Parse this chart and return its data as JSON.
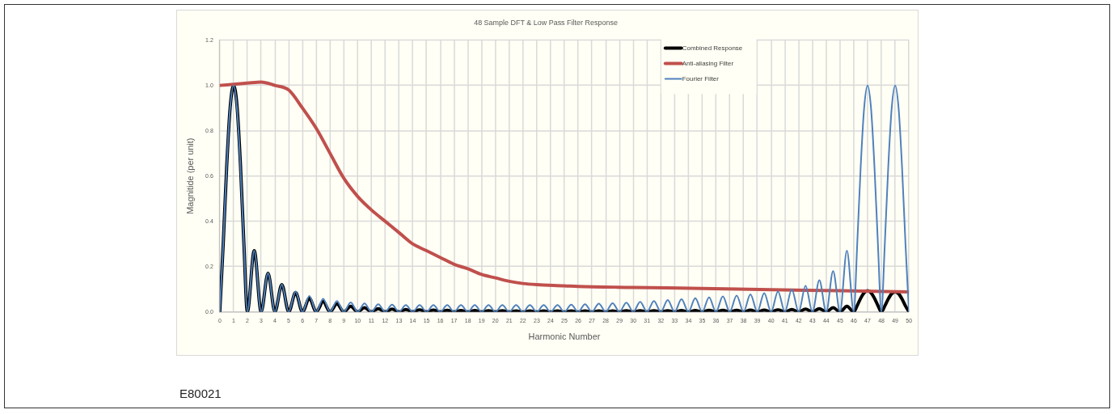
{
  "chart_data": {
    "type": "line",
    "title": "48 Sample DFT & Low Pass Filter Response",
    "xlabel": "Harmonic Number",
    "ylabel": "Magnitide (per unit)",
    "x": [
      0,
      0.25,
      0.5,
      0.75,
      1,
      1.25,
      1.5,
      1.75,
      2,
      2.5,
      3,
      3.5,
      4,
      4.5,
      5,
      5.5,
      6,
      6.5,
      7,
      7.5,
      8,
      8.5,
      9,
      9.5,
      10,
      10.5,
      11,
      11.5,
      12,
      12.5,
      13,
      13.5,
      14,
      14.5,
      15,
      15.5,
      16,
      16.5,
      17,
      17.5,
      18,
      18.5,
      19,
      19.5,
      20,
      20.5,
      21,
      21.5,
      22,
      22.5,
      23,
      23.5,
      24,
      24.5,
      25,
      25.5,
      26,
      26.5,
      27,
      27.5,
      28,
      28.5,
      29,
      29.5,
      30,
      30.5,
      31,
      31.5,
      32,
      32.5,
      33,
      33.5,
      34,
      34.5,
      35,
      35.5,
      36,
      36.5,
      37,
      37.5,
      38,
      38.5,
      39,
      39.5,
      40,
      40.5,
      41,
      41.5,
      42,
      42.5,
      43,
      43.5,
      44,
      44.5,
      45,
      45.5,
      46,
      46.25,
      46.5,
      46.75,
      47,
      47.25,
      47.5,
      47.75,
      48,
      48.25,
      48.5,
      48.75,
      49,
      49.25,
      49.5,
      49.75,
      50
    ],
    "series": [
      {
        "name": "Combined Response",
        "color": "#000000",
        "values": [
          0,
          0.3,
          0.64,
          0.9,
          1,
          0.91,
          0.65,
          0.3,
          0,
          0.27,
          0,
          0.17,
          0,
          0.12,
          0,
          0.085,
          0,
          0.06,
          0,
          0.045,
          0,
          0.035,
          0,
          0.025,
          0,
          0.018,
          0,
          0.014,
          0,
          0.012,
          0,
          0.01,
          0,
          0.009,
          0,
          0.008,
          0,
          0.007,
          0,
          0.006,
          0,
          0.006,
          0,
          0.005,
          0,
          0.005,
          0,
          0.004,
          0,
          0.004,
          0,
          0.004,
          0,
          0.004,
          0,
          0.004,
          0,
          0.004,
          0,
          0.004,
          0,
          0.004,
          0,
          0.005,
          0,
          0.005,
          0,
          0.005,
          0,
          0.005,
          0,
          0.006,
          0,
          0.006,
          0,
          0.007,
          0,
          0.007,
          0,
          0.007,
          0,
          0.008,
          0,
          0.008,
          0,
          0.009,
          0,
          0.01,
          0,
          0.012,
          0,
          0.014,
          0,
          0.018,
          0,
          0.025,
          0,
          0.028,
          0.06,
          0.084,
          0.093,
          0.084,
          0.06,
          0.028,
          0,
          0.026,
          0.057,
          0.08,
          0.088,
          0.08,
          0.057,
          0.026,
          0
        ]
      },
      {
        "name": "Anti-aliasing Filter",
        "color": "#c0504d",
        "x": [
          0,
          1,
          2,
          3,
          4,
          5,
          6,
          7,
          8,
          9,
          10,
          11,
          12,
          13,
          14,
          15,
          16,
          17,
          18,
          19,
          20,
          21,
          22,
          23,
          25,
          26,
          30,
          35,
          40,
          45,
          50
        ],
        "values": [
          1.0,
          1.005,
          1.01,
          1.015,
          1.0,
          0.98,
          0.9,
          0.81,
          0.7,
          0.59,
          0.51,
          0.45,
          0.4,
          0.35,
          0.3,
          0.27,
          0.24,
          0.21,
          0.19,
          0.165,
          0.15,
          0.135,
          0.125,
          0.12,
          0.115,
          0.112,
          0.108,
          0.103,
          0.098,
          0.093,
          0.088
        ]
      },
      {
        "name": "Fourier Filter",
        "color": "#4f81bd",
        "values": [
          0,
          0.3,
          0.64,
          0.9,
          1,
          0.9,
          0.64,
          0.3,
          0,
          0.27,
          0,
          0.17,
          0,
          0.12,
          0,
          0.09,
          0,
          0.07,
          0,
          0.058,
          0,
          0.048,
          0,
          0.042,
          0,
          0.037,
          0,
          0.034,
          0,
          0.032,
          0,
          0.03,
          0,
          0.03,
          0,
          0.03,
          0,
          0.03,
          0,
          0.03,
          0,
          0.03,
          0,
          0.03,
          0,
          0.03,
          0,
          0.03,
          0,
          0.03,
          0,
          0.03,
          0,
          0.03,
          0,
          0.032,
          0,
          0.034,
          0,
          0.036,
          0,
          0.038,
          0,
          0.041,
          0,
          0.044,
          0,
          0.048,
          0,
          0.052,
          0,
          0.056,
          0,
          0.06,
          0,
          0.064,
          0,
          0.068,
          0,
          0.072,
          0,
          0.077,
          0,
          0.083,
          0,
          0.09,
          0,
          0.1,
          0,
          0.115,
          0,
          0.14,
          0,
          0.18,
          0,
          0.27,
          0,
          0.3,
          0.64,
          0.9,
          1,
          0.9,
          0.64,
          0.3,
          0,
          0.3,
          0.64,
          0.9,
          1,
          0.9,
          0.64,
          0.3,
          0
        ]
      }
    ],
    "xlim": [
      0,
      50
    ],
    "xticks": [
      0,
      1,
      2,
      3,
      4,
      5,
      6,
      7,
      8,
      9,
      10,
      11,
      12,
      13,
      14,
      15,
      16,
      17,
      18,
      19,
      20,
      21,
      22,
      23,
      24,
      25,
      26,
      27,
      28,
      29,
      30,
      31,
      32,
      33,
      34,
      35,
      36,
      37,
      38,
      39,
      40,
      41,
      42,
      43,
      44,
      45,
      46,
      47,
      48,
      49,
      50
    ],
    "ylim": [
      0,
      1.2
    ],
    "yticks": [
      {
        "value": 0,
        "label": "0.0"
      },
      {
        "value": 0.2,
        "label": "0.2"
      },
      {
        "value": 0.4,
        "label": "0.4"
      },
      {
        "value": 0.6,
        "label": "0.6"
      },
      {
        "value": 0.8,
        "label": "0.8"
      },
      {
        "value": 1,
        "label": "1.0"
      },
      {
        "value": 1.2,
        "label": "1.2"
      }
    ],
    "grid": true,
    "legend": "top right",
    "marker": "none",
    "line_style": "solid",
    "annotations": [
      "E80021"
    ]
  }
}
